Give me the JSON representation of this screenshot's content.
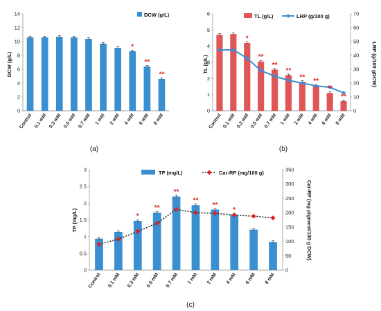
{
  "chart_data": [
    {
      "id": "a",
      "panel_label": "(a)",
      "type": "bar",
      "categories": [
        "Control",
        "0.1 mM",
        "0.3 mM",
        "0.5 mM",
        "0.7 mM",
        "1 mM",
        "2 mM",
        "4 mM",
        "6 mM",
        "8 mM"
      ],
      "series": [
        {
          "name": "DCW (g/L)",
          "values": [
            10.6,
            10.6,
            10.7,
            10.6,
            10.4,
            9.7,
            9.1,
            8.6,
            6.4,
            4.6
          ],
          "significance": [
            "",
            "",
            "",
            "",
            "",
            "",
            "",
            "*",
            "**",
            "**"
          ]
        }
      ],
      "ylabel": "DCW (g/L)",
      "ylim": [
        0,
        14
      ],
      "yticks": [
        0,
        2,
        4,
        6,
        8,
        10,
        12,
        14
      ],
      "legend": "top-right",
      "bar_color": "#3a8fd1"
    },
    {
      "id": "b",
      "panel_label": "(b)",
      "type": "bar",
      "categories": [
        "Control",
        "0.1 mM",
        "0.3 mM",
        "0.5 mM",
        "0.7 mM",
        "1 mM",
        "2 mM",
        "4 mM",
        "6 mM",
        "8 mM"
      ],
      "series": [
        {
          "name": "TL (g/L)",
          "kind": "bar",
          "axis": "left",
          "values": [
            4.7,
            4.75,
            4.2,
            3.05,
            2.55,
            2.2,
            1.8,
            1.55,
            1.1,
            0.6
          ],
          "significance": [
            "",
            "",
            "*",
            "**",
            "**",
            "**",
            "**",
            "**",
            "**",
            "**"
          ]
        },
        {
          "name": "LRP (g/100 g)",
          "kind": "line",
          "axis": "right",
          "values": [
            44,
            44,
            38,
            29,
            25,
            22,
            20,
            18,
            17,
            13
          ]
        }
      ],
      "ylabel": "TL (g/L)",
      "ylabel_right": "LRP (g/100 gDCW)",
      "ylim": [
        0,
        6
      ],
      "ylim_right": [
        0,
        70
      ],
      "yticks": [
        0,
        1,
        2,
        3,
        4,
        5,
        6
      ],
      "yticks_right": [
        0,
        10,
        20,
        30,
        40,
        50,
        60,
        70
      ],
      "legend": "top-right",
      "bar_color": "#e05555",
      "line_color": "#3a8fd1"
    },
    {
      "id": "c",
      "panel_label": "(c)",
      "type": "bar",
      "categories": [
        "Control",
        "0.1 mM",
        "0.3 mM",
        "0.5 mM",
        "0.7 mM",
        "1 mM",
        "2 mM",
        "4 mM",
        "6 mM",
        "8 mM"
      ],
      "series": [
        {
          "name": "TP (mg/L)",
          "kind": "bar",
          "axis": "left",
          "values": [
            0.94,
            1.14,
            1.47,
            1.72,
            2.2,
            1.94,
            1.81,
            1.66,
            1.21,
            0.84
          ],
          "significance": [
            "",
            "",
            "*",
            "**",
            "**",
            "**",
            "**",
            "*",
            "",
            ""
          ]
        },
        {
          "name": "Car-RP (mg/100 g)",
          "kind": "line",
          "axis": "right",
          "values": [
            90,
            108,
            135,
            163,
            212,
            200,
            198,
            192,
            188,
            182
          ]
        }
      ],
      "ylabel": "TP (mg/L)",
      "ylabel_right": "Car-RP (mg pigment/100 g DCW)",
      "ylim": [
        0,
        3
      ],
      "ylim_right": [
        0,
        350
      ],
      "yticks": [
        "0",
        "0.5",
        "1",
        "1.5",
        "2",
        "2.5",
        "3"
      ],
      "yticks_right": [
        0,
        50,
        100,
        150,
        200,
        250,
        300,
        350
      ],
      "legend": "top",
      "bar_color": "#3a8fd1",
      "line_color": "#e02020"
    }
  ]
}
